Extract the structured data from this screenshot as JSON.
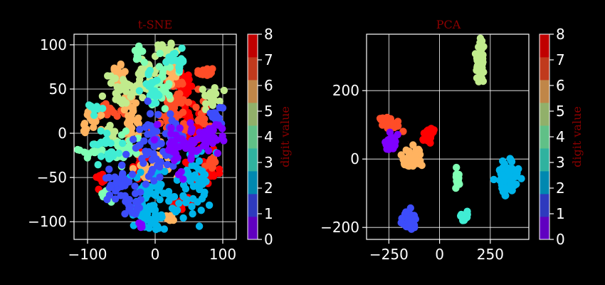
{
  "chart_data": [
    {
      "type": "scatter",
      "title": "t-SNE",
      "xlabel": "",
      "ylabel": "",
      "xlim": [
        -120,
        120
      ],
      "ylim": [
        -120,
        112
      ],
      "xticks": [
        -100,
        0,
        100
      ],
      "xtick_labels": [
        "−100",
        "0",
        "100"
      ],
      "yticks": [
        -100,
        -50,
        0,
        50,
        100
      ],
      "ytick_labels": [
        "−100",
        "−50",
        "0",
        "50",
        "100"
      ],
      "grid": true,
      "colorbar": {
        "label": "digit value",
        "ticks": [
          "0",
          "1",
          "2",
          "3",
          "4",
          "5",
          "6",
          "7",
          "8"
        ]
      },
      "clusters": [
        {
          "digit": 8,
          "cx": 40,
          "cy": 55,
          "sx": 6,
          "sy": 8,
          "n": 30
        },
        {
          "digit": 8,
          "cx": 55,
          "cy": 5,
          "sx": 10,
          "sy": 15,
          "n": 40
        },
        {
          "digit": 8,
          "cx": 80,
          "cy": -45,
          "sx": 8,
          "sy": 8,
          "n": 25
        },
        {
          "digit": 8,
          "cx": -20,
          "cy": -35,
          "sx": 6,
          "sy": 8,
          "n": 20
        },
        {
          "digit": 8,
          "cx": -80,
          "cy": -52,
          "sx": 5,
          "sy": 4,
          "n": 12
        },
        {
          "digit": 8,
          "cx": 40,
          "cy": -78,
          "sx": 8,
          "sy": 3,
          "n": 12
        },
        {
          "digit": 7,
          "cx": 25,
          "cy": 30,
          "sx": 15,
          "sy": 20,
          "n": 60
        },
        {
          "digit": 7,
          "cx": 70,
          "cy": 68,
          "sx": 8,
          "sy": 3,
          "n": 15
        },
        {
          "digit": 7,
          "cx": -70,
          "cy": 25,
          "sx": 8,
          "sy": 4,
          "n": 18
        },
        {
          "digit": 7,
          "cx": 70,
          "cy": 15,
          "sx": 5,
          "sy": 5,
          "n": 10
        },
        {
          "digit": 7,
          "cx": 80,
          "cy": -35,
          "sx": 5,
          "sy": 5,
          "n": 10
        },
        {
          "digit": 6,
          "cx": -95,
          "cy": 10,
          "sx": 8,
          "sy": 6,
          "n": 15
        },
        {
          "digit": 6,
          "cx": -35,
          "cy": 15,
          "sx": 6,
          "sy": 15,
          "n": 30
        },
        {
          "digit": 6,
          "cx": 0,
          "cy": -35,
          "sx": 15,
          "sy": 10,
          "n": 30
        },
        {
          "digit": 6,
          "cx": 25,
          "cy": 70,
          "sx": 6,
          "sy": 12,
          "n": 20
        },
        {
          "digit": 6,
          "cx": -55,
          "cy": 68,
          "sx": 8,
          "sy": 6,
          "n": 15
        },
        {
          "digit": 6,
          "cx": 25,
          "cy": -95,
          "sx": 5,
          "sy": 4,
          "n": 10
        },
        {
          "digit": 5,
          "cx": -40,
          "cy": 50,
          "sx": 20,
          "sy": 8,
          "n": 40
        },
        {
          "digit": 5,
          "cx": 20,
          "cy": 95,
          "sx": 10,
          "sy": 4,
          "n": 18
        },
        {
          "digit": 5,
          "cx": 85,
          "cy": 40,
          "sx": 10,
          "sy": 6,
          "n": 18
        },
        {
          "digit": 5,
          "cx": -65,
          "cy": 0,
          "sx": 6,
          "sy": 6,
          "n": 15
        },
        {
          "digit": 5,
          "cx": -10,
          "cy": 70,
          "sx": 6,
          "sy": 8,
          "n": 15
        },
        {
          "digit": 4,
          "cx": -95,
          "cy": -20,
          "sx": 8,
          "sy": 4,
          "n": 15
        },
        {
          "digit": 4,
          "cx": 10,
          "cy": 55,
          "sx": 10,
          "sy": 15,
          "n": 30
        },
        {
          "digit": 4,
          "cx": -50,
          "cy": -20,
          "sx": 12,
          "sy": 10,
          "n": 25
        },
        {
          "digit": 4,
          "cx": -25,
          "cy": 90,
          "sx": 5,
          "sy": 5,
          "n": 10
        },
        {
          "digit": 4,
          "cx": -75,
          "cy": -70,
          "sx": 5,
          "sy": 5,
          "n": 8
        },
        {
          "digit": 3,
          "cx": 30,
          "cy": 82,
          "sx": 8,
          "sy": 6,
          "n": 15
        },
        {
          "digit": 3,
          "cx": -5,
          "cy": 50,
          "sx": 8,
          "sy": 10,
          "n": 20
        },
        {
          "digit": 3,
          "cx": -70,
          "cy": -15,
          "sx": 10,
          "sy": 10,
          "n": 20
        },
        {
          "digit": 3,
          "cx": -90,
          "cy": 30,
          "sx": 5,
          "sy": 5,
          "n": 8
        },
        {
          "digit": 2,
          "cx": 0,
          "cy": -75,
          "sx": 20,
          "sy": 15,
          "n": 55
        },
        {
          "digit": 2,
          "cx": 60,
          "cy": -55,
          "sx": 15,
          "sy": 25,
          "n": 45
        },
        {
          "digit": 2,
          "cx": -20,
          "cy": -90,
          "sx": 8,
          "sy": 8,
          "n": 20
        },
        {
          "digit": 2,
          "cx": 0,
          "cy": -105,
          "sx": 4,
          "sy": 4,
          "n": 6
        },
        {
          "digit": 1,
          "cx": 0,
          "cy": -15,
          "sx": 15,
          "sy": 20,
          "n": 50
        },
        {
          "digit": 1,
          "cx": 30,
          "cy": -5,
          "sx": 10,
          "sy": 10,
          "n": 20
        },
        {
          "digit": 1,
          "cx": -50,
          "cy": -60,
          "sx": 15,
          "sy": 10,
          "n": 30
        },
        {
          "digit": 1,
          "cx": 90,
          "cy": 20,
          "sx": 6,
          "sy": 5,
          "n": 12
        },
        {
          "digit": 1,
          "cx": -35,
          "cy": -80,
          "sx": 8,
          "sy": 8,
          "n": 15
        },
        {
          "digit": 0,
          "cx": 50,
          "cy": -15,
          "sx": 18,
          "sy": 15,
          "n": 60
        },
        {
          "digit": 0,
          "cx": 85,
          "cy": 0,
          "sx": 8,
          "sy": 10,
          "n": 20
        },
        {
          "digit": 0,
          "cx": -20,
          "cy": -105,
          "sx": 3,
          "sy": 3,
          "n": 4
        }
      ]
    },
    {
      "type": "scatter",
      "title": "PCA",
      "xlabel": "",
      "ylabel": "",
      "xlim": [
        -360,
        440
      ],
      "ylim": [
        -235,
        365
      ],
      "xticks": [
        -250,
        0,
        250
      ],
      "xtick_labels": [
        "−250",
        "0",
        "250"
      ],
      "yticks": [
        -200,
        0,
        200
      ],
      "ytick_labels": [
        "−200",
        "0",
        "200"
      ],
      "grid": true,
      "colorbar": {
        "label": "digit value",
        "ticks": [
          "0",
          "1",
          "2",
          "3",
          "4",
          "5",
          "6",
          "7",
          "8"
        ]
      },
      "clusters": [
        {
          "digit": 5,
          "cx": 200,
          "cy": 290,
          "sx": 10,
          "sy": 30,
          "n": 45,
          "skew": 0.6
        },
        {
          "digit": 7,
          "cx": -250,
          "cy": 105,
          "sx": 30,
          "sy": 8,
          "n": 35,
          "skew": -0.2
        },
        {
          "digit": 8,
          "cx": -50,
          "cy": 75,
          "sx": 15,
          "sy": 12,
          "n": 30,
          "skew": 0.6
        },
        {
          "digit": 0,
          "cx": -240,
          "cy": 45,
          "sx": 15,
          "sy": 10,
          "n": 35
        },
        {
          "digit": 6,
          "cx": -130,
          "cy": 0,
          "sx": 30,
          "sy": 15,
          "n": 40
        },
        {
          "digit": 4,
          "cx": 90,
          "cy": -60,
          "sx": 6,
          "sy": 15,
          "n": 20
        },
        {
          "digit": 3,
          "cx": 120,
          "cy": -170,
          "sx": 10,
          "sy": 10,
          "n": 25
        },
        {
          "digit": 2,
          "cx": 340,
          "cy": -50,
          "sx": 25,
          "sy": 20,
          "n": 60
        },
        {
          "digit": 2,
          "cx": 320,
          "cy": -95,
          "sx": 6,
          "sy": 6,
          "n": 10
        },
        {
          "digit": 1,
          "cx": -150,
          "cy": -180,
          "sx": 15,
          "sy": 15,
          "n": 35
        }
      ]
    }
  ],
  "palette": [
    "#7f00ff",
    "#3d4dfb",
    "#00b5eb",
    "#40edd4",
    "#80ffb4",
    "#c1eb8d",
    "#ffb360",
    "#ff4d27",
    "#ff0000"
  ],
  "colorbar_palette": [
    "#6000c0",
    "#2e3abe",
    "#0088b0",
    "#30b29f",
    "#60c087",
    "#91b06a",
    "#c08648",
    "#c03a1d",
    "#c00000"
  ]
}
